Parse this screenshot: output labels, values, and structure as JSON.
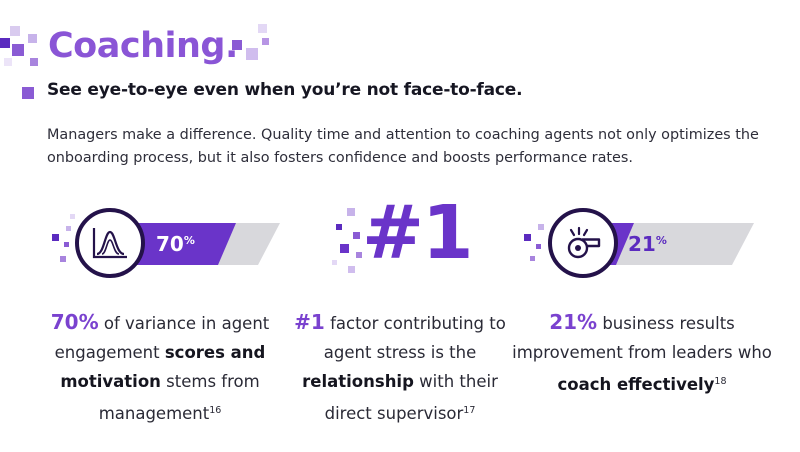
{
  "title": "Coaching.",
  "subtitle": "See eye-to-eye even when you’re not face-to-face.",
  "intro": "Managers make a difference. Quality time and attention to coaching agents not only optimizes the onboarding process, but it also fosters confidence and boosts performance rates.",
  "colors": {
    "accent": "#8a55d6",
    "dark": "#24124a",
    "banner": "#6a34c9",
    "light_banner": "#d8d8dc"
  },
  "stats": [
    {
      "icon": "bell-curve-chart-icon",
      "badge_value": "70",
      "badge_unit": "%",
      "highlight": "70%",
      "text_1": " of variance in agent engagement ",
      "bold_1": "scores and motivation",
      "text_2": " stems from management",
      "ref": "16"
    },
    {
      "badge_value": "#1",
      "highlight": "#1",
      "text_1": " factor contributing to agent stress is the ",
      "bold_1": "relationship",
      "text_2": " with their direct supervisor",
      "ref": "17"
    },
    {
      "icon": "whistle-icon",
      "badge_value": "21",
      "badge_unit": "%",
      "highlight": "21%",
      "text_1": " business results improvement from leaders who ",
      "bold_1": "coach effectively",
      "ref": "18"
    }
  ]
}
